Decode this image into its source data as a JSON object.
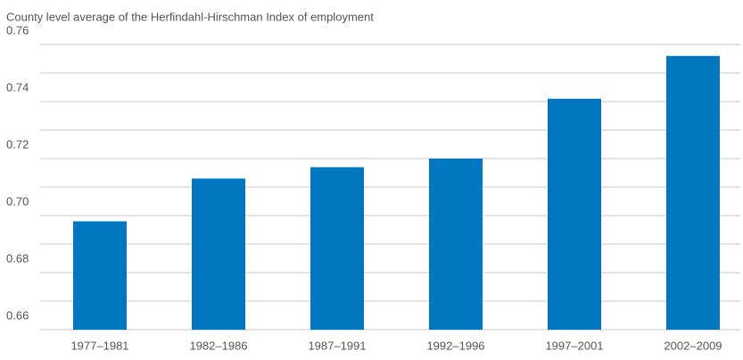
{
  "chart_data": {
    "type": "bar",
    "title": "County level average of the Herfindahl-Hirschman Index of employment",
    "categories": [
      "1977–1981",
      "1982–1986",
      "1987–1991",
      "1992–1996",
      "1997–2001",
      "2002–2009"
    ],
    "values": [
      0.698,
      0.713,
      0.717,
      0.72,
      0.741,
      0.756
    ],
    "color": "#0077c0",
    "ylim": [
      0.66,
      0.76
    ],
    "yticks": [
      0.66,
      0.68,
      {
        "value": 0.7,
        "label": "0.70"
      },
      0.72,
      0.74,
      0.76
    ],
    "grid": true
  }
}
